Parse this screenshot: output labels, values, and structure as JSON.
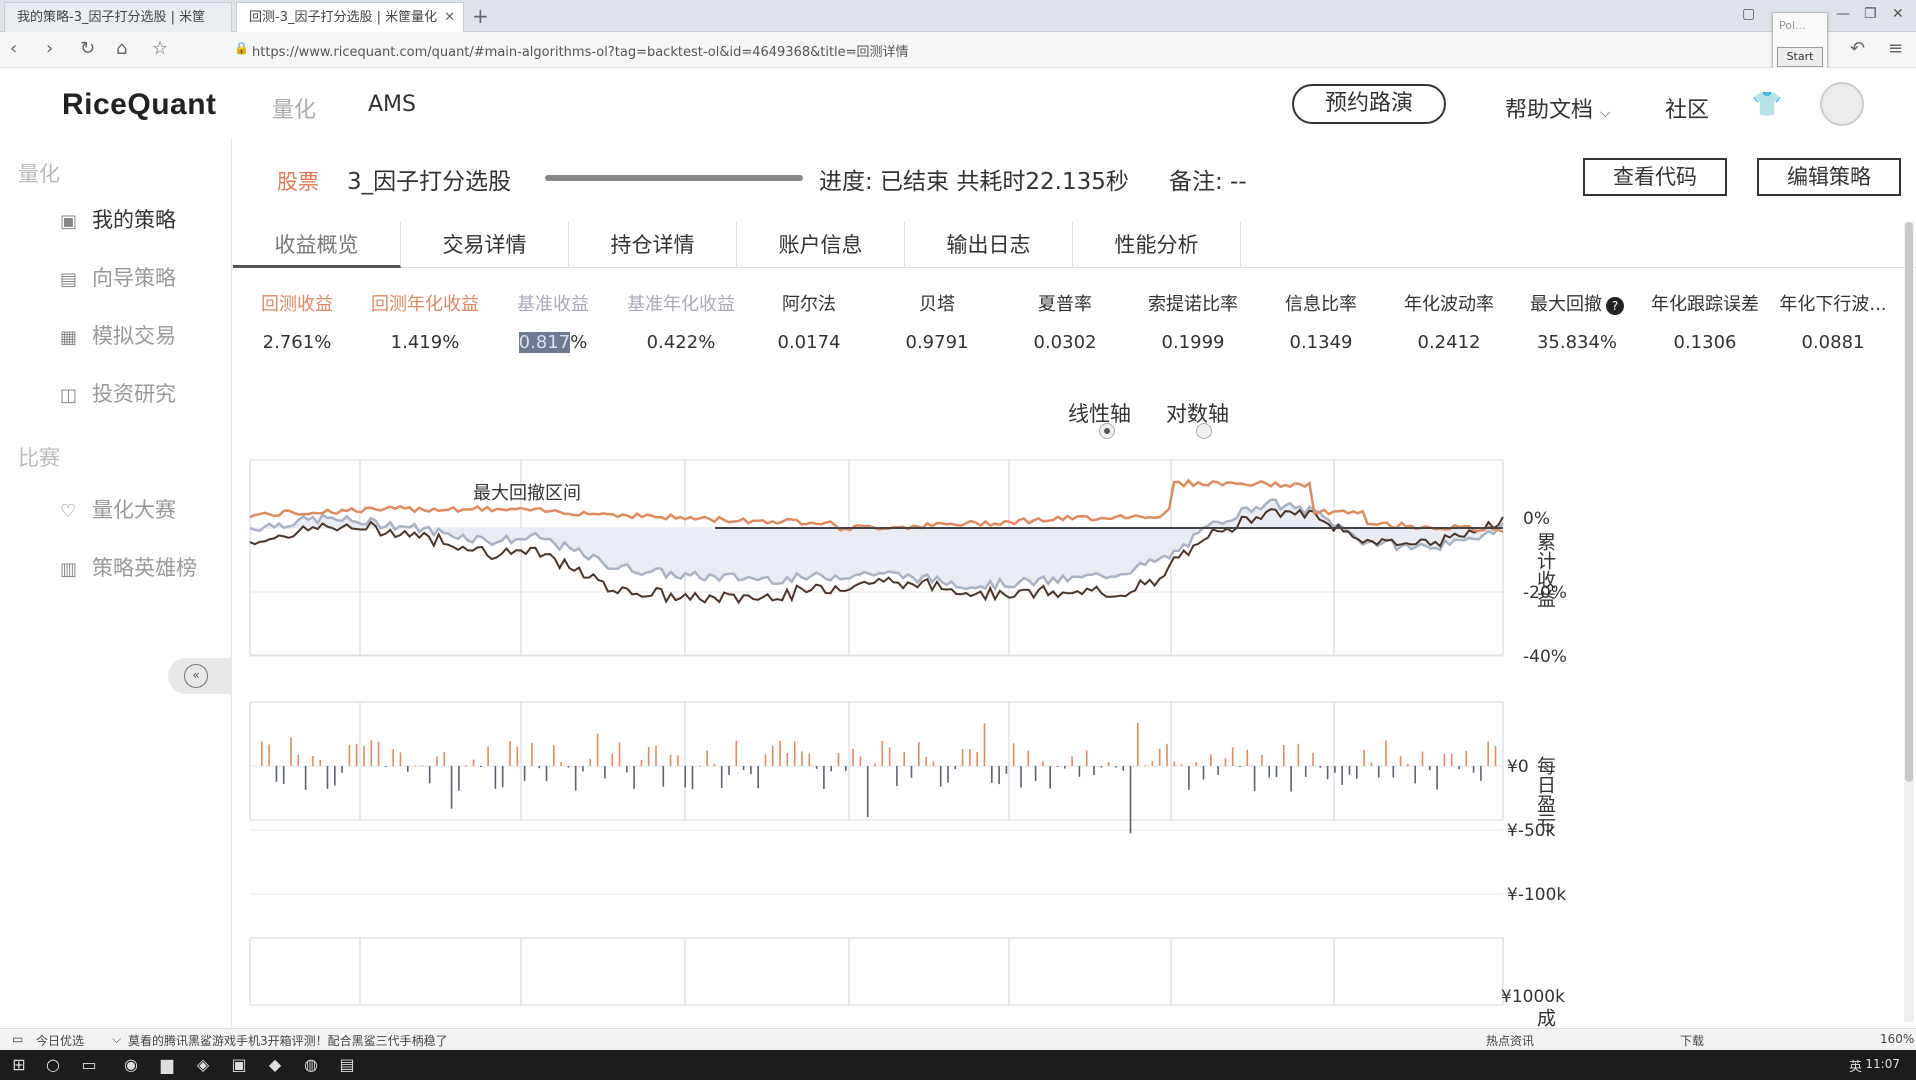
{
  "browser": {
    "tabs": [
      {
        "label": "我的策略-3_因子打分选股 | 米筐"
      },
      {
        "label": "回测-3_因子打分选股 | 米筐量化"
      }
    ],
    "url": "https://www.ricequant.com/quant/#main-algorithms-ol?tag=backtest-ol&id=4649368&title=回测详情",
    "popup_short": "Pol...",
    "popup_button": "Start"
  },
  "header": {
    "logo": "RiceQuant",
    "nav": {
      "quant": "量化",
      "ams": "AMS"
    },
    "roadshow_button": "预约路演",
    "help": "帮助文档",
    "community": "社区"
  },
  "sidebar": {
    "section1": "量化",
    "items1": [
      {
        "label": "我的策略",
        "icon": "chart-board-icon"
      },
      {
        "label": "向导策略",
        "icon": "guide-icon"
      },
      {
        "label": "模拟交易",
        "icon": "trade-icon"
      },
      {
        "label": "投资研究",
        "icon": "research-icon"
      }
    ],
    "section2": "比赛",
    "items2": [
      {
        "label": "量化大赛",
        "icon": "trophy-icon"
      },
      {
        "label": "策略英雄榜",
        "icon": "leaderboard-icon"
      }
    ]
  },
  "strategy": {
    "tag": "股票",
    "name": "3_因子打分选股",
    "progress": "进度: 已结束 共耗时22.135秒",
    "note": "备注: --",
    "view_code": "查看代码",
    "edit": "编辑策略"
  },
  "tabs": [
    "收益概览",
    "交易详情",
    "持仓详情",
    "账户信息",
    "输出日志",
    "性能分析"
  ],
  "metrics": [
    {
      "label": "回测收益",
      "value": "2.761%",
      "style": "orange"
    },
    {
      "label": "回测年化收益",
      "value": "1.419%",
      "style": "orange"
    },
    {
      "label": "基准收益",
      "value": "0.817",
      "suffix": "%",
      "style": "grey"
    },
    {
      "label": "基准年化收益",
      "value": "0.422%",
      "style": "grey"
    },
    {
      "label": "阿尔法",
      "value": "0.0174",
      "style": ""
    },
    {
      "label": "贝塔",
      "value": "0.9791",
      "style": ""
    },
    {
      "label": "夏普率",
      "value": "0.0302",
      "style": ""
    },
    {
      "label": "索提诺比率",
      "value": "0.1999",
      "style": ""
    },
    {
      "label": "信息比率",
      "value": "0.1349",
      "style": ""
    },
    {
      "label": "年化波动率",
      "value": "0.2412",
      "style": ""
    },
    {
      "label": "最大回撤",
      "value": "35.834%",
      "style": ""
    },
    {
      "label": "年化跟踪误差",
      "value": "0.1306",
      "style": ""
    },
    {
      "label": "年化下行波...",
      "value": "0.0881",
      "style": ""
    }
  ],
  "axis_toggle": {
    "linear": "线性轴",
    "log": "对数轴",
    "selected": "linear"
  },
  "chart": {
    "max_drawdown_label": "最大回撤区间",
    "returns_axis_title": "累计收益",
    "returns_ticks": [
      "0%",
      "-20%",
      "-40%"
    ],
    "daily_axis_title": "每日盈亏",
    "daily_ticks": [
      "¥0",
      "¥-50k",
      "¥-100k"
    ],
    "volume_tick": "¥1000k",
    "volume_axis_title": "成",
    "colors": {
      "strategy": "#e08a5e",
      "benchmark": "#a9b2c3",
      "excess": "#4a3528",
      "up_bar": "#e08a5e",
      "down_bar": "#5a6272"
    }
  },
  "newsbar": {
    "left": "今日优选",
    "headline": "莫看的腾讯黑鲨游戏手机3开箱评测！配合黑鲨三代手柄稳了",
    "right1": "热点资讯",
    "right2": "下载",
    "zoom": "160%"
  },
  "taskbar": {
    "time": "11:07",
    "ime": "英"
  }
}
